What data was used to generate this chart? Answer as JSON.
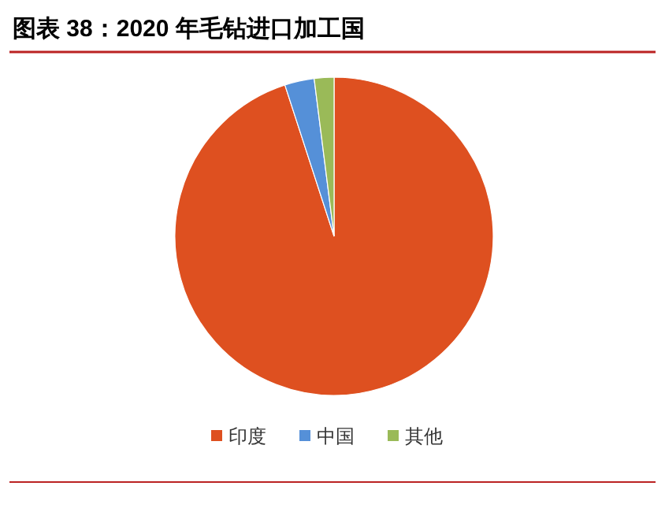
{
  "chart_data": {
    "type": "pie",
    "title": "图表 38：2020 年毛钻进口加工国",
    "categories": [
      "印度",
      "中国",
      "其他"
    ],
    "values": [
      95,
      3,
      2
    ],
    "colors": [
      "#de5020",
      "#5590d8",
      "#9aba58"
    ],
    "legend": "bottom"
  }
}
